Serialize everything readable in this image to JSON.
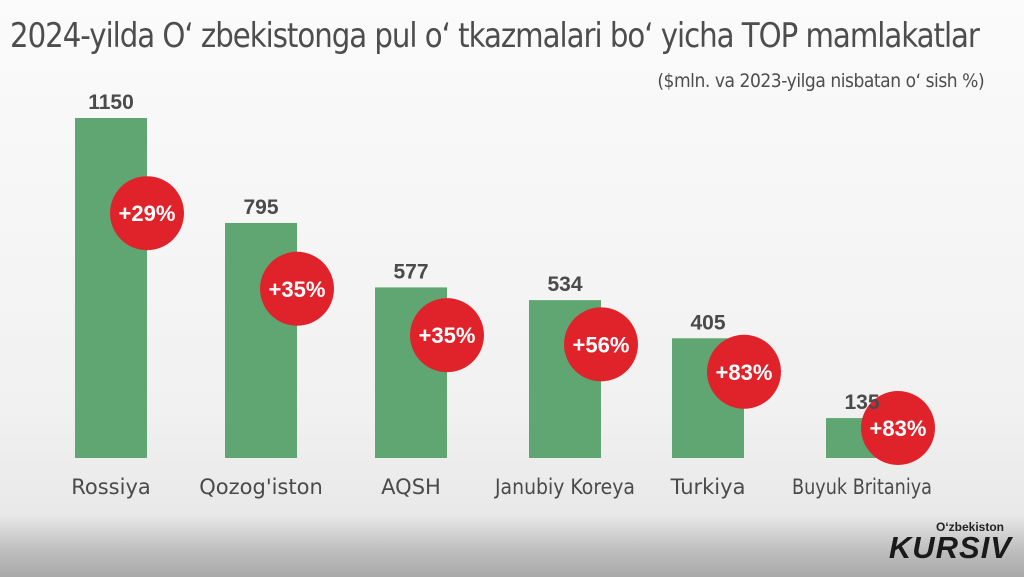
{
  "chart_data": {
    "type": "bar",
    "title": "2024-yilda O‘ zbekistonga pul o‘ tkazmalari bo‘ yicha TOP mamlakatlar",
    "subtitle": "($mln. va 2023-yilga nisbatan o‘ sish %)",
    "categories": [
      "Rossiya",
      "Qozog'iston",
      "AQSH",
      "Janubiy Koreya",
      "Turkiya",
      "Buyuk Britaniya"
    ],
    "values": [
      1150,
      795,
      577,
      534,
      405,
      135
    ],
    "value_labels": [
      "1150",
      "795",
      "577",
      "534",
      "405",
      "135"
    ],
    "growth_labels": [
      "+29%",
      "+35%",
      "+35%",
      "+56%",
      "+83%",
      "+83%"
    ],
    "ylim": [
      0,
      1150
    ],
    "grid": false,
    "bar_color": "#5fa672",
    "badge_color": "#e0232b"
  },
  "logo": {
    "small": "O‘zbekiston",
    "main": "KURSIV"
  }
}
